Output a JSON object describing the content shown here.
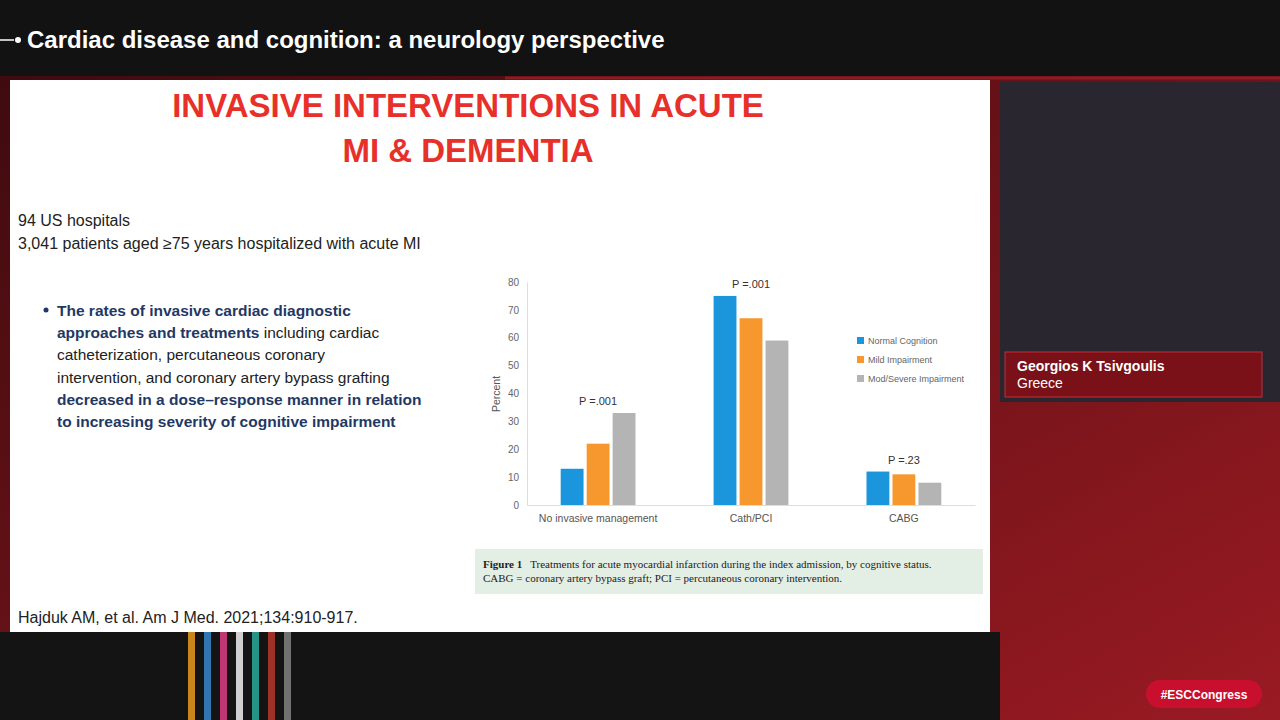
{
  "chart_data": {
    "type": "bar",
    "title": "INVASIVE INTERVENTIONS IN ACUTE MI & DEMENTIA",
    "categories": [
      "No invasive management",
      "Cath/PCI",
      "CABG"
    ],
    "series": [
      {
        "name": "Normal Cognition",
        "color": "#1b96dc",
        "values": [
          13,
          75,
          12
        ]
      },
      {
        "name": "Mild Impairment",
        "color": "#f7982f",
        "values": [
          22,
          67,
          11
        ]
      },
      {
        "name": "Mod/Severe Impairment",
        "color": "#b4b4b4",
        "values": [
          33,
          59,
          8
        ]
      }
    ],
    "y_label": "Percent",
    "ylim": [
      0,
      80
    ],
    "yticks": [
      0,
      10,
      20,
      30,
      40,
      50,
      60,
      70,
      80
    ],
    "grid": false,
    "legend": "upper right",
    "annotations": [
      {
        "text": "P =.001",
        "category": "No invasive management"
      },
      {
        "text": "P =.001",
        "category": "Cath/PCI"
      },
      {
        "text": "P =.23",
        "category": "CABG"
      }
    ]
  },
  "slide": {
    "header": "Cardiac disease and cognition: a neurology perspective",
    "title_lines": [
      "INVASIVE INTERVENTIONS IN ACUTE",
      "MI & DEMENTIA"
    ],
    "intro_lines": [
      "94 US hospitals",
      "3,041 patients aged ≥75 years hospitalized with acute MI"
    ],
    "bullet_lines": [
      [
        {
          "text": "The rates of invasive cardiac diagnostic",
          "emphasis": true
        }
      ],
      [
        {
          "text": "approaches and treatments",
          "emphasis": true
        },
        {
          "text": " including cardiac",
          "emphasis": false
        }
      ],
      [
        {
          "text": "catheterization, percutaneous coronary",
          "emphasis": false
        }
      ],
      [
        {
          "text": "intervention, and coronary artery bypass grafting",
          "emphasis": false
        }
      ],
      [
        {
          "text": "decreased in a dose–response manner in relation",
          "emphasis": true
        }
      ],
      [
        {
          "text": "to increasing severity of cognitive impairment",
          "emphasis": true
        }
      ]
    ],
    "caption": {
      "label": "Figure 1",
      "lines": [
        "Treatments for acute myocardial infarction during the index admission, by cognitive status.",
        "CABG = coronary artery bypass graft; PCI = percutaneous coronary intervention."
      ]
    },
    "citation": "Hajduk AM, et al. Am J Med. 2021;134:910-917.",
    "speaker": {
      "name": "Georgios K Tsivgoulis",
      "country": "Greece"
    },
    "hashtag": "#ESCCongress"
  }
}
